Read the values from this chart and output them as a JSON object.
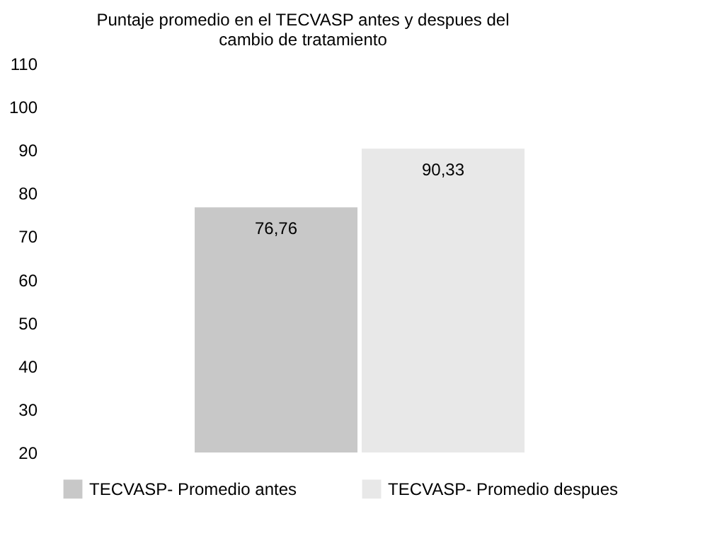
{
  "chart_data": {
    "type": "bar",
    "title": "Puntaje promedio en el TECVASP antes y despues del\ncambio de tratamiento",
    "categories": [
      null
    ],
    "series": [
      {
        "name": "TECVASP- Promedio antes",
        "color": "#c8c8c8",
        "values": [
          76.76
        ],
        "value_labels": [
          "76,76"
        ]
      },
      {
        "name": "TECVASP- Promedio  despues",
        "color": "#e8e8e8",
        "values": [
          90.33
        ],
        "value_labels": [
          "90,33"
        ]
      }
    ],
    "ylim": [
      20,
      110
    ],
    "yticks": [
      20,
      30,
      40,
      50,
      60,
      70,
      80,
      90,
      100,
      110
    ],
    "grid": false,
    "legend": "bottom"
  }
}
